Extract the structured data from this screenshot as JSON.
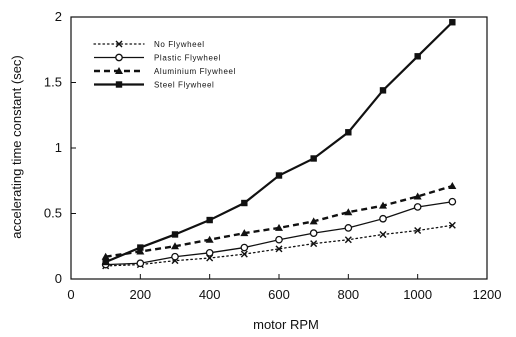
{
  "chart_data": {
    "type": "line",
    "title": "",
    "xlabel": "motor RPM",
    "ylabel": "accelerating time constant (sec)",
    "xlim": [
      0,
      1200
    ],
    "ylim": [
      0,
      2
    ],
    "xticks": [
      0,
      200,
      400,
      600,
      800,
      1000,
      1200
    ],
    "yticks": [
      0,
      0.5,
      1,
      1.5,
      2
    ],
    "ytick_labels": [
      "0",
      "0.5",
      "1",
      "1.5",
      "2"
    ],
    "grid": false,
    "legend": "top-left",
    "x": [
      100,
      200,
      300,
      400,
      500,
      600,
      700,
      800,
      900,
      1000,
      1100
    ],
    "series": [
      {
        "name": "No Flywheel",
        "marker": "x",
        "line": "dotted",
        "values": [
          0.1,
          0.11,
          0.14,
          0.16,
          0.19,
          0.23,
          0.27,
          0.3,
          0.34,
          0.37,
          0.41
        ]
      },
      {
        "name": "Plastic Flywheel",
        "marker": "circle",
        "line": "solid-thin",
        "values": [
          0.11,
          0.12,
          0.17,
          0.2,
          0.24,
          0.3,
          0.35,
          0.39,
          0.46,
          0.55,
          0.59
        ]
      },
      {
        "name": "Aluminium Flywheel",
        "marker": "triangle",
        "line": "dashed",
        "values": [
          0.17,
          0.21,
          0.25,
          0.3,
          0.35,
          0.39,
          0.44,
          0.51,
          0.56,
          0.63,
          0.71
        ]
      },
      {
        "name": "Steel Flywheel",
        "marker": "square",
        "line": "solid-thick",
        "values": [
          0.13,
          0.24,
          0.34,
          0.45,
          0.58,
          0.79,
          0.92,
          1.12,
          1.44,
          1.7,
          1.96
        ]
      }
    ]
  }
}
